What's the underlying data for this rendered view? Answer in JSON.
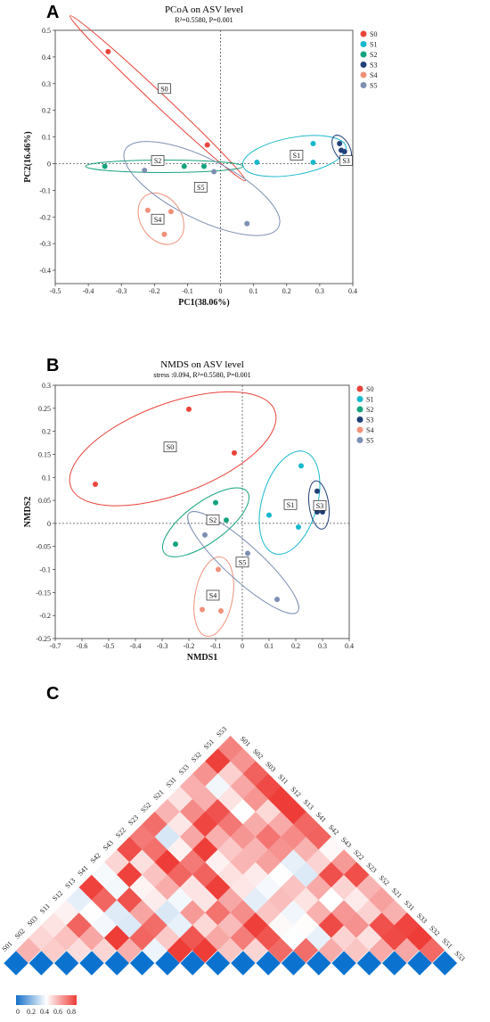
{
  "panels": {
    "a_label": "A",
    "b_label": "B",
    "c_label": "C"
  },
  "legend_labels": [
    "S0",
    "S1",
    "S2",
    "S3",
    "S4",
    "S5"
  ],
  "colors": {
    "S0": "#e8433a",
    "S1": "#17b8cc",
    "S2": "#14a37f",
    "S3": "#213f78",
    "S4": "#f2917a",
    "S5": "#7d8fb3"
  },
  "chart_data": [
    {
      "type": "scatter",
      "title": "PCoA on ASV level",
      "subtitle": "R²=0.5580, P=0.001",
      "xlabel": "PC1(38.06%)",
      "ylabel": "PC2(16.46%)",
      "xlim": [
        -0.5,
        0.4
      ],
      "ylim": [
        -0.45,
        0.5
      ],
      "xticks": [
        -0.5,
        -0.4,
        -0.3,
        -0.2,
        -0.1,
        0,
        0.1,
        0.2,
        0.3,
        0.4
      ],
      "yticks": [
        -0.4,
        -0.3,
        -0.2,
        -0.1,
        0,
        0.1,
        0.2,
        0.3,
        0.4,
        0.5
      ],
      "legend": "right",
      "series": [
        {
          "name": "S0",
          "points": [
            [
              -0.34,
              0.42
            ],
            [
              -0.04,
              0.07
            ]
          ]
        },
        {
          "name": "S1",
          "points": [
            [
              0.11,
              0.005
            ],
            [
              0.28,
              0.075
            ],
            [
              0.28,
              0.005
            ]
          ]
        },
        {
          "name": "S2",
          "points": [
            [
              -0.35,
              -0.01
            ],
            [
              -0.11,
              -0.01
            ],
            [
              -0.05,
              -0.01
            ]
          ]
        },
        {
          "name": "S3",
          "points": [
            [
              0.36,
              0.075
            ],
            [
              0.365,
              0.05
            ],
            [
              0.375,
              0.045
            ]
          ]
        },
        {
          "name": "S4",
          "points": [
            [
              -0.22,
              -0.175
            ],
            [
              -0.15,
              -0.18
            ],
            [
              -0.17,
              -0.265
            ]
          ]
        },
        {
          "name": "S5",
          "points": [
            [
              -0.23,
              -0.025
            ],
            [
              -0.02,
              -0.03
            ],
            [
              0.08,
              -0.225
            ]
          ]
        }
      ],
      "group_boxes": [
        {
          "label": "S0",
          "at": [
            -0.17,
            0.28
          ]
        },
        {
          "label": "S1",
          "at": [
            0.23,
            0.03
          ]
        },
        {
          "label": "S2",
          "at": [
            -0.19,
            0.01
          ]
        },
        {
          "label": "S3",
          "at": [
            0.38,
            0.01
          ]
        },
        {
          "label": "S4",
          "at": [
            -0.19,
            -0.21
          ]
        },
        {
          "label": "S5",
          "at": [
            -0.06,
            -0.09
          ]
        }
      ]
    },
    {
      "type": "scatter",
      "title": "NMDS on ASV level",
      "subtitle": "stress :0.094, R²=0.5580, P=0.001",
      "xlabel": "NMDS1",
      "ylabel": "NMDS2",
      "xlim": [
        -0.7,
        0.4
      ],
      "ylim": [
        -0.25,
        0.3
      ],
      "xticks": [
        -0.7,
        -0.6,
        -0.5,
        -0.4,
        -0.3,
        -0.2,
        -0.1,
        0,
        0.1,
        0.2,
        0.3,
        0.4
      ],
      "yticks": [
        -0.25,
        -0.2,
        -0.15,
        -0.1,
        -0.05,
        0,
        0.05,
        0.1,
        0.15,
        0.2,
        0.25,
        0.3
      ],
      "legend": "right",
      "series": [
        {
          "name": "S0",
          "points": [
            [
              -0.55,
              0.085
            ],
            [
              -0.2,
              0.248
            ],
            [
              -0.03,
              0.153
            ]
          ]
        },
        {
          "name": "S1",
          "points": [
            [
              0.1,
              0.018
            ],
            [
              0.22,
              0.125
            ],
            [
              0.21,
              -0.008
            ]
          ]
        },
        {
          "name": "S2",
          "points": [
            [
              -0.25,
              -0.045
            ],
            [
              -0.1,
              0.045
            ],
            [
              -0.06,
              0.007
            ]
          ]
        },
        {
          "name": "S3",
          "points": [
            [
              0.28,
              0.07
            ],
            [
              0.28,
              0.025
            ],
            [
              0.3,
              0.025
            ]
          ]
        },
        {
          "name": "S4",
          "points": [
            [
              -0.15,
              -0.187
            ],
            [
              -0.09,
              -0.1
            ],
            [
              -0.08,
              -0.19
            ]
          ]
        },
        {
          "name": "S5",
          "points": [
            [
              -0.14,
              -0.025
            ],
            [
              0.02,
              -0.065
            ],
            [
              0.13,
              -0.165
            ]
          ]
        }
      ],
      "group_boxes": [
        {
          "label": "S0",
          "at": [
            -0.27,
            0.165
          ]
        },
        {
          "label": "S1",
          "at": [
            0.18,
            0.04
          ]
        },
        {
          "label": "S2",
          "at": [
            -0.11,
            0.007
          ]
        },
        {
          "label": "S3",
          "at": [
            0.29,
            0.038
          ]
        },
        {
          "label": "S4",
          "at": [
            -0.11,
            -0.157
          ]
        },
        {
          "label": "S5",
          "at": [
            0.0,
            -0.085
          ]
        }
      ]
    },
    {
      "type": "heatmap",
      "labels": [
        "S01",
        "S02",
        "S03",
        "S11",
        "S12",
        "S13",
        "S41",
        "S42",
        "S43",
        "S22",
        "S23",
        "S52",
        "S21",
        "S31",
        "S33",
        "S32",
        "S51",
        "S53"
      ],
      "colorbar_ticks": [
        "0",
        "0.2",
        "0.4",
        "0.6",
        "0.8"
      ]
    }
  ]
}
